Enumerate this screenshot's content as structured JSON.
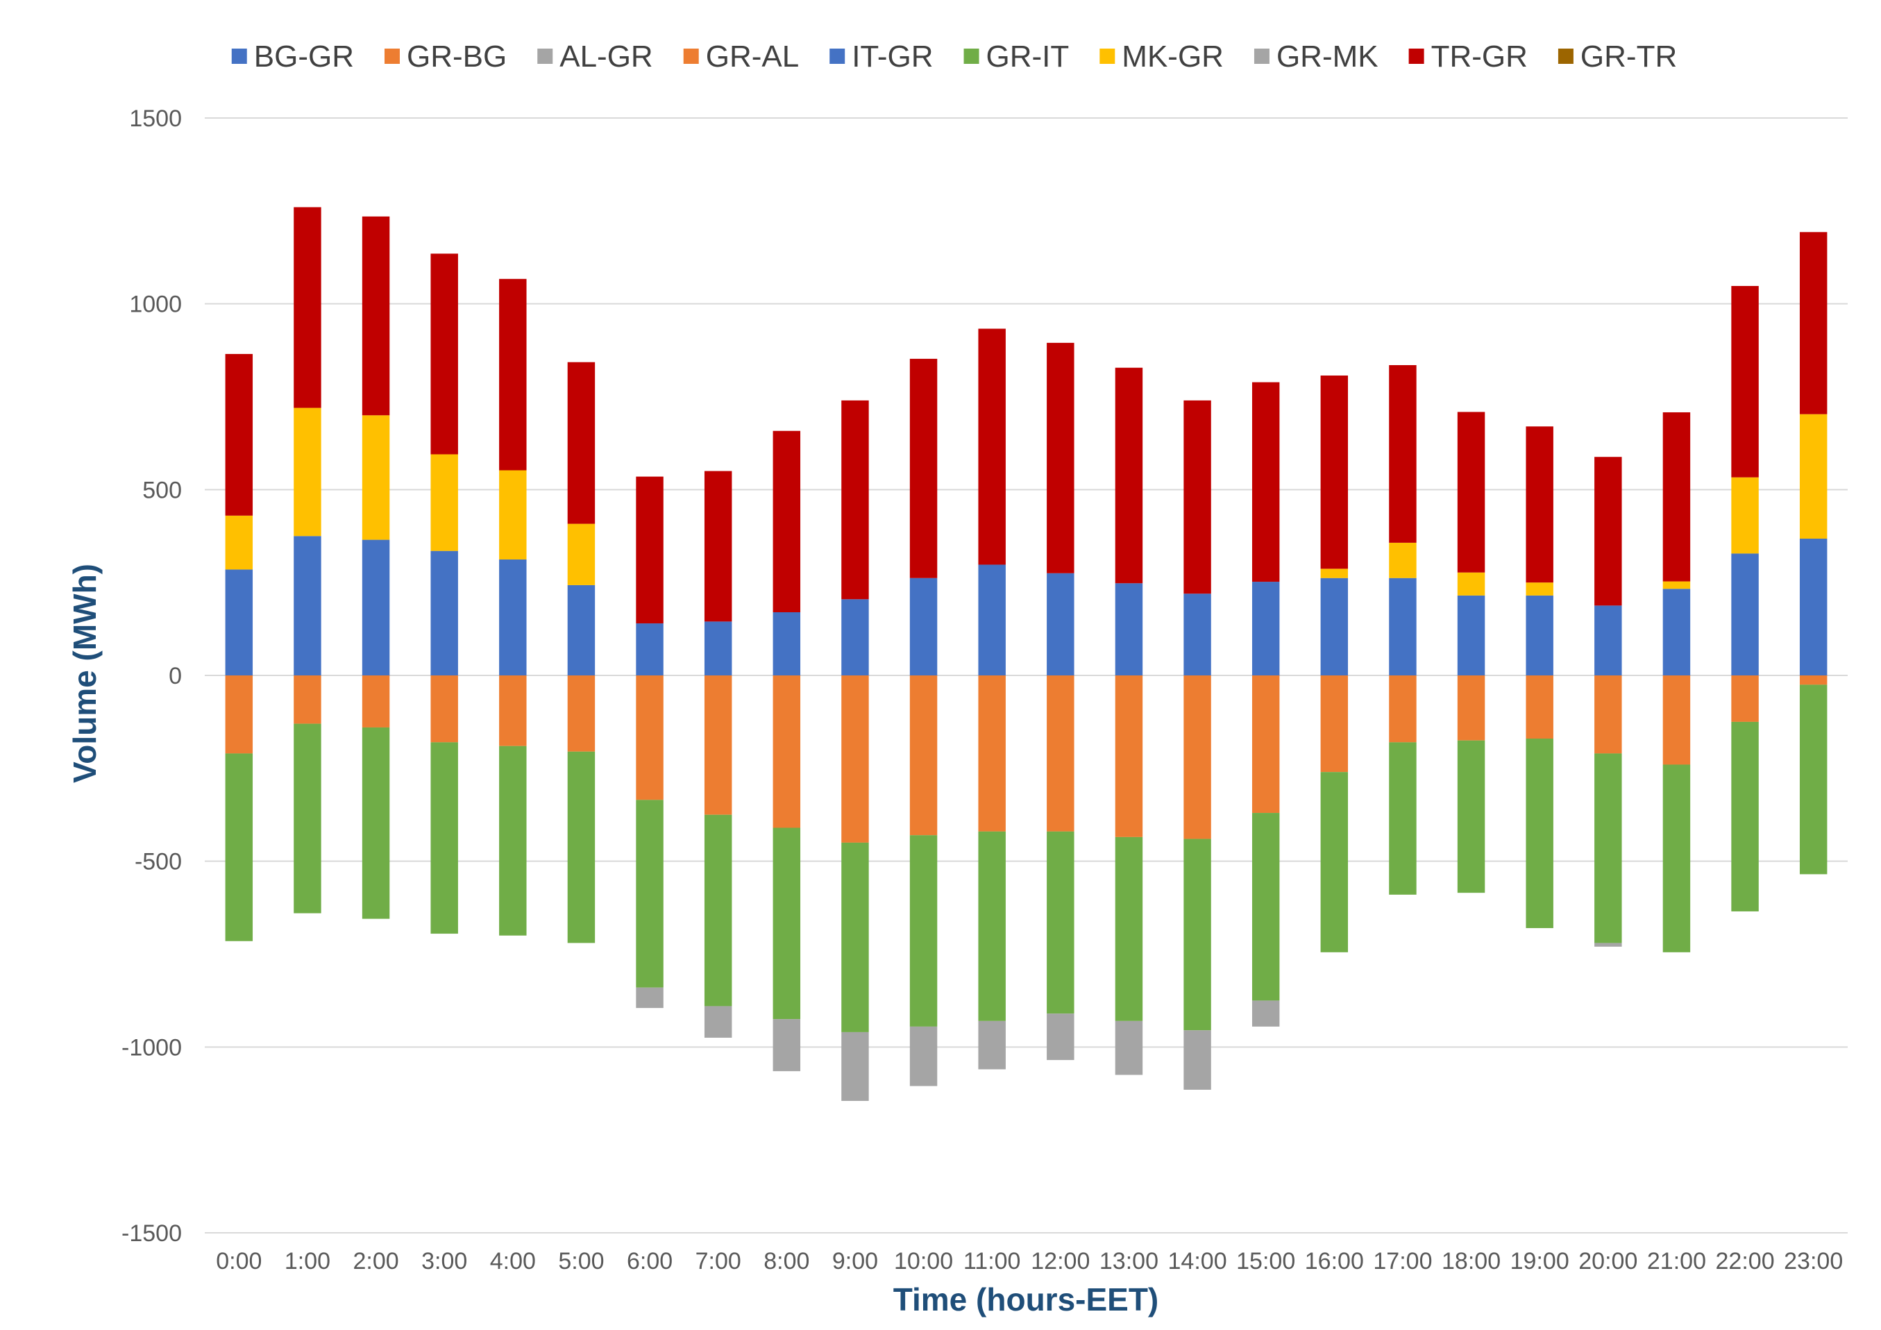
{
  "chart_data": {
    "type": "bar",
    "stacked": true,
    "xlabel": "Time (hours-EET)",
    "ylabel": "Volume (MWh)",
    "ylim": [
      -1500,
      1500
    ],
    "yticks": [
      -1500,
      -1000,
      -500,
      0,
      500,
      1000,
      1500
    ],
    "ytick_labels": [
      "-1500",
      "-1000",
      "-500",
      "0",
      "500",
      "1000",
      "1500"
    ],
    "grid": true,
    "legend_position": "top",
    "categories": [
      "0:00",
      "1:00",
      "2:00",
      "3:00",
      "4:00",
      "5:00",
      "6:00",
      "7:00",
      "8:00",
      "9:00",
      "10:00",
      "11:00",
      "12:00",
      "13:00",
      "14:00",
      "15:00",
      "16:00",
      "17:00",
      "18:00",
      "19:00",
      "20:00",
      "21:00",
      "22:00",
      "23:00"
    ],
    "series": [
      {
        "name": "BG-GR",
        "color": "#4472c4",
        "values": [
          285,
          375,
          365,
          335,
          312,
          243,
          140,
          145,
          170,
          205,
          262,
          298,
          275,
          248,
          220,
          252,
          262,
          262,
          215,
          215,
          188,
          233,
          328,
          368
        ]
      },
      {
        "name": "GR-BG",
        "color": "#ed7d31",
        "values": [
          -210,
          -130,
          -140,
          -180,
          -190,
          -205,
          -335,
          -375,
          -410,
          -450,
          -430,
          -420,
          -420,
          -435,
          -440,
          -370,
          -260,
          -180,
          -175,
          -170,
          -210,
          -240,
          -125,
          -25
        ]
      },
      {
        "name": "AL-GR",
        "color": "#a5a5a5",
        "values": [
          0,
          0,
          0,
          0,
          0,
          0,
          0,
          0,
          0,
          0,
          0,
          0,
          0,
          0,
          0,
          0,
          0,
          0,
          0,
          0,
          0,
          0,
          0,
          0
        ]
      },
      {
        "name": "GR-AL",
        "color": "#ed7d31",
        "values": [
          0,
          0,
          0,
          0,
          0,
          0,
          0,
          0,
          0,
          0,
          0,
          0,
          0,
          0,
          0,
          0,
          0,
          0,
          0,
          0,
          0,
          0,
          0,
          0
        ]
      },
      {
        "name": "IT-GR",
        "color": "#4472c4",
        "values": [
          0,
          0,
          0,
          0,
          0,
          0,
          0,
          0,
          0,
          0,
          0,
          0,
          0,
          0,
          0,
          0,
          0,
          0,
          0,
          0,
          0,
          0,
          0,
          0
        ]
      },
      {
        "name": "GR-IT",
        "color": "#70ad47",
        "values": [
          -505,
          -510,
          -515,
          -515,
          -510,
          -515,
          -505,
          -515,
          -515,
          -510,
          -515,
          -510,
          -490,
          -495,
          -515,
          -505,
          -485,
          -410,
          -410,
          -510,
          -510,
          -505,
          -510,
          -510
        ]
      },
      {
        "name": "MK-GR",
        "color": "#ffc000",
        "values": [
          145,
          345,
          335,
          260,
          240,
          165,
          0,
          0,
          0,
          0,
          0,
          0,
          0,
          0,
          0,
          0,
          25,
          95,
          62,
          35,
          0,
          20,
          205,
          335
        ]
      },
      {
        "name": "GR-MK",
        "color": "#a5a5a5",
        "values": [
          0,
          0,
          0,
          0,
          0,
          0,
          -55,
          -85,
          -140,
          -185,
          -160,
          -130,
          -125,
          -145,
          -160,
          -70,
          0,
          0,
          0,
          0,
          -10,
          0,
          0,
          0
        ]
      },
      {
        "name": "TR-GR",
        "color": "#c00000",
        "values": [
          435,
          540,
          535,
          540,
          515,
          435,
          395,
          405,
          488,
          535,
          590,
          635,
          620,
          580,
          520,
          537,
          520,
          478,
          432,
          420,
          400,
          455,
          515,
          490
        ]
      },
      {
        "name": "GR-TR",
        "color": "#9c6500",
        "values": [
          0,
          0,
          0,
          0,
          0,
          0,
          0,
          0,
          0,
          0,
          0,
          0,
          0,
          0,
          0,
          0,
          0,
          0,
          0,
          0,
          0,
          0,
          0,
          0
        ]
      }
    ]
  }
}
